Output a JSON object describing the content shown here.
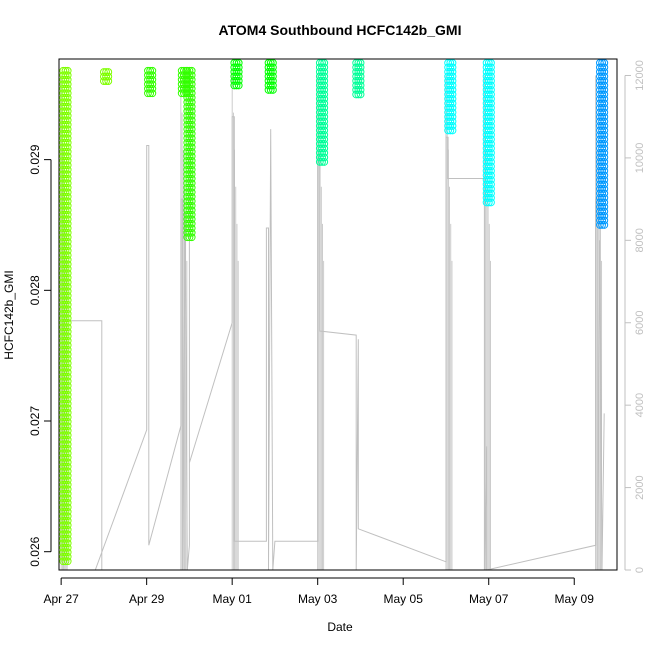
{
  "chart_data": {
    "type": "scatter",
    "title": "ATOM4 Southbound HCFC142b_GMI",
    "xlabel": "Date",
    "ylabel": "HCFC142b_GMI",
    "x_ticks": [
      {
        "label": "Apr 27",
        "day": 27
      },
      {
        "label": "Apr 29",
        "day": 29
      },
      {
        "label": "May 01",
        "day": 31
      },
      {
        "label": "May 03",
        "day": 33
      },
      {
        "label": "May 05",
        "day": 35
      },
      {
        "label": "May 07",
        "day": 37
      },
      {
        "label": "May 09",
        "day": 39
      }
    ],
    "xlim": [
      26.95,
      40.0
    ],
    "ylim": [
      0.02586,
      0.02977
    ],
    "y_ticks": [
      "0.026",
      "0.027",
      "0.028",
      "0.029"
    ],
    "y2lim": [
      0,
      12400
    ],
    "y2_ticks": [
      "0",
      "2000",
      "4000",
      "6000",
      "8000",
      "10000",
      "12000"
    ],
    "series": [
      {
        "color": "#7FFF00",
        "segments": [
          {
            "x": 27.05,
            "y0": 0.0259,
            "y1": 0.02968
          },
          {
            "x": 28.0,
            "y0": 0.0296,
            "y1": 0.02967
          }
        ]
      },
      {
        "color": "#33FF00",
        "segments": [
          {
            "x": 29.03,
            "y0": 0.0295,
            "y1": 0.02968
          },
          {
            "x": 29.82,
            "y0": 0.02948,
            "y1": 0.02968
          },
          {
            "x": 29.95,
            "y0": 0.0284,
            "y1": 0.02968
          }
        ]
      },
      {
        "color": "#00FF00",
        "segments": [
          {
            "x": 31.05,
            "y0": 0.02955,
            "y1": 0.02974
          },
          {
            "x": 31.85,
            "y0": 0.02953,
            "y1": 0.02974
          }
        ]
      },
      {
        "color": "#00FF99",
        "segments": [
          {
            "x": 33.05,
            "y0": 0.02895,
            "y1": 0.02974
          },
          {
            "x": 33.9,
            "y0": 0.02948,
            "y1": 0.02974
          }
        ]
      },
      {
        "color": "#00FFFF",
        "segments": [
          {
            "x": 36.05,
            "y0": 0.0292,
            "y1": 0.02974
          },
          {
            "x": 36.95,
            "y0": 0.02866,
            "y1": 0.02974
          }
        ]
      },
      {
        "color": "#0099FF",
        "segments": [
          {
            "x": 39.6,
            "y0": 0.02848,
            "y1": 0.02974
          }
        ]
      }
    ],
    "secondary_line": {
      "color": "#C0C0C0",
      "spikes": [
        {
          "x": 27.0,
          "v0": 0,
          "v1": 12000
        },
        {
          "x": 29.8,
          "v0": 0,
          "v1": 12000
        },
        {
          "x": 31.0,
          "v0": 0,
          "v1": 12000
        },
        {
          "x": 33.0,
          "v0": 0,
          "v1": 12000
        },
        {
          "x": 36.0,
          "v0": 0,
          "v1": 12000
        },
        {
          "x": 36.9,
          "v0": 0,
          "v1": 12000
        },
        {
          "x": 39.5,
          "v0": 0,
          "v1": 12000
        }
      ],
      "path": [
        [
          27.05,
          5800
        ],
        [
          27.05,
          6050
        ],
        [
          27.95,
          6050
        ],
        [
          27.95,
          0
        ],
        [
          27.8,
          0
        ],
        [
          29.0,
          3400
        ],
        [
          29.0,
          10300
        ],
        [
          29.05,
          10300
        ],
        [
          29.05,
          600
        ],
        [
          29.8,
          3500
        ],
        [
          29.8,
          9000
        ],
        [
          29.85,
          9000
        ],
        [
          29.85,
          0
        ],
        [
          29.9,
          8700
        ],
        [
          29.95,
          0
        ],
        [
          30.0,
          600
        ],
        [
          30.0,
          11600
        ],
        [
          30.0,
          2600
        ],
        [
          31.0,
          6000
        ],
        [
          31.0,
          11000
        ],
        [
          31.05,
          11000
        ],
        [
          31.05,
          700
        ],
        [
          31.8,
          700
        ],
        [
          31.8,
          8300
        ],
        [
          31.85,
          8300
        ],
        [
          31.85,
          0
        ],
        [
          31.9,
          10700
        ],
        [
          31.95,
          0
        ],
        [
          32.0,
          700
        ],
        [
          33.0,
          700
        ],
        [
          33.0,
          10000
        ],
        [
          33.05,
          10000
        ],
        [
          33.05,
          5800
        ],
        [
          33.9,
          5700
        ],
        [
          33.9,
          0
        ],
        [
          33.95,
          5600
        ],
        [
          33.95,
          1000
        ],
        [
          36.0,
          200
        ],
        [
          36.0,
          10500
        ],
        [
          36.05,
          10500
        ],
        [
          36.05,
          9500
        ],
        [
          36.9,
          9500
        ],
        [
          36.9,
          0
        ],
        [
          36.95,
          3000
        ],
        [
          36.95,
          0
        ],
        [
          39.5,
          600
        ],
        [
          39.5,
          9000
        ],
        [
          39.55,
          9000
        ],
        [
          39.55,
          0
        ],
        [
          39.6,
          8000
        ],
        [
          39.65,
          0
        ],
        [
          39.7,
          3800
        ]
      ]
    }
  }
}
